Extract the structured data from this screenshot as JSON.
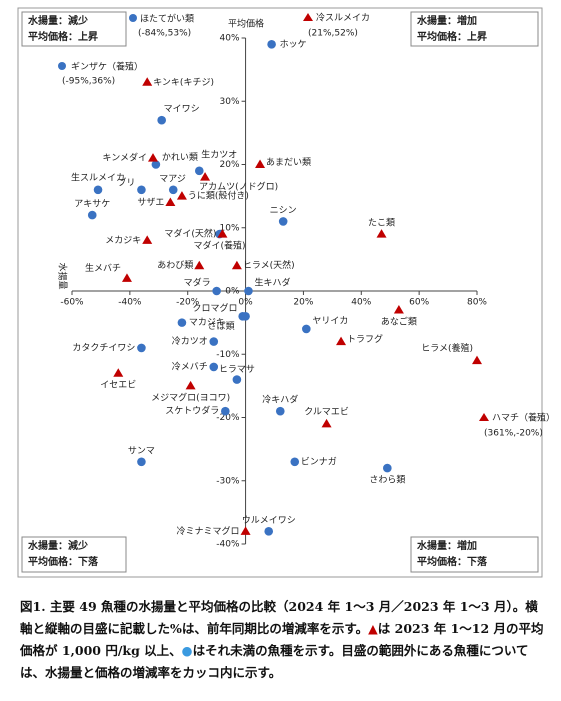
{
  "chart_data": {
    "type": "scatter",
    "x_axis_title": "水揚量",
    "y_axis_title": "平均価格",
    "xlim": [
      -60,
      80
    ],
    "xticks": [
      {
        "value": -60,
        "label": "-60%"
      },
      {
        "value": -40,
        "label": "-40%"
      },
      {
        "value": -20,
        "label": "-20%"
      },
      {
        "value": 0,
        "label": "0%"
      },
      {
        "value": 20,
        "label": "20%"
      },
      {
        "value": 40,
        "label": "40%"
      },
      {
        "value": 60,
        "label": "60%"
      },
      {
        "value": 80,
        "label": "80%"
      }
    ],
    "ylim": [
      -40,
      40
    ],
    "yticks": [
      {
        "value": -40,
        "label": "-40%"
      },
      {
        "value": -30,
        "label": "-30%"
      },
      {
        "value": -20,
        "label": "-20%"
      },
      {
        "value": -10,
        "label": "-10%"
      },
      {
        "value": 0,
        "label": "0%"
      },
      {
        "value": 10,
        "label": "10%"
      },
      {
        "value": 20,
        "label": "20%"
      },
      {
        "value": 30,
        "label": "30%"
      },
      {
        "value": 40,
        "label": "40%"
      }
    ],
    "series": [
      {
        "color": "#3a72c2",
        "marker": "circle",
        "labels": [
          "ホッケ",
          "マイワシ",
          "かれい類",
          "マアジ",
          "ブリ",
          "生スルメイカ",
          "アキサケ",
          "生カツオ",
          "ニシン",
          "マダイ(養殖)",
          "マダラ",
          "生キハダ",
          "クロマグロ",
          "マカジキ",
          "ヤリイカ",
          "冷カツオ",
          "カタクチイワシ",
          "冷メバチ",
          "ヒラマサ",
          "冷キハダ",
          "スケトウダラ",
          "サンマ",
          "ビンナガ",
          "さわら類",
          "ウルメイワシ",
          "さば類"
        ],
        "x": [
          9,
          -29,
          -31,
          -25,
          -36,
          -51,
          -53,
          -16,
          13,
          -9,
          -10,
          1,
          0,
          -22,
          21,
          -11,
          -36,
          -11,
          -3,
          12,
          -7,
          -36,
          17,
          49,
          8,
          -1
        ],
        "values": [
          39,
          27,
          20,
          16,
          16,
          16,
          12,
          19,
          11,
          9,
          0,
          0,
          -4,
          -5,
          -6,
          -8,
          -9,
          -12,
          -14,
          -19,
          -19,
          -27,
          -27,
          -28,
          -38,
          -4
        ]
      },
      {
        "color": "#c00000",
        "marker": "triangle",
        "labels": [
          "キンキ(キチジ)",
          "キンメダイ",
          "あまだい類",
          "アカムツ(ノドグロ)",
          "うに類(殻付き)",
          "サザエ",
          "たこ類",
          "メカジキ",
          "マダイ(天然)",
          "あわび類",
          "ヒラメ(天然)",
          "生メバチ",
          "あなご類",
          "トラフグ",
          "ヒラメ(養殖)",
          "イセエビ",
          "メジマグロ(ヨコワ)",
          "クルマエビ",
          "冷ミナミマグロ"
        ],
        "x": [
          -34,
          -32,
          5,
          -14,
          -22,
          -26,
          47,
          -34,
          -8,
          -16,
          -3,
          -41,
          53,
          33,
          80,
          -44,
          -19,
          28,
          0
        ],
        "values": [
          33,
          21,
          20,
          18,
          15,
          14,
          9,
          8,
          9,
          4,
          4,
          2,
          -3,
          -8,
          -11,
          -13,
          -15,
          -21,
          -38
        ]
      }
    ],
    "outliers": [
      {
        "name": "ほたてがい類",
        "coords": "(-84%,53%)"
      },
      {
        "name": "ギンザケ（養殖）",
        "coords": "(-95%,36%)"
      },
      {
        "name": "冷スルメイカ",
        "coords": "(21%,52%)"
      },
      {
        "name": "ハマチ（養殖）",
        "coords": "(361%,-20%)"
      }
    ],
    "quadrants": [
      [
        "水揚量：減少",
        "平均価格：上昇"
      ],
      [
        "水揚量：増加",
        "平均価格：上昇"
      ],
      [
        "水揚量：減少",
        "平均価格：下落"
      ],
      [
        "水揚量：増加",
        "平均価格：下落"
      ]
    ]
  },
  "caption": [
    "図1. 主要 49 魚種の水揚量と平均価格の比較（2024 年 1～3 月／2023 年 1～3 月）。横軸と縦軸の目盛に記載した%は、前年同期比の増減率を示す。",
    "▲",
    "は 2023 年 1～12 月の平均価格が 1,000 円/kg 以上、",
    "●",
    "はそれ未満の魚種を示す。目盛の範囲外にある魚種については、水揚量と価格の増減率をカッコ内に示す。"
  ]
}
